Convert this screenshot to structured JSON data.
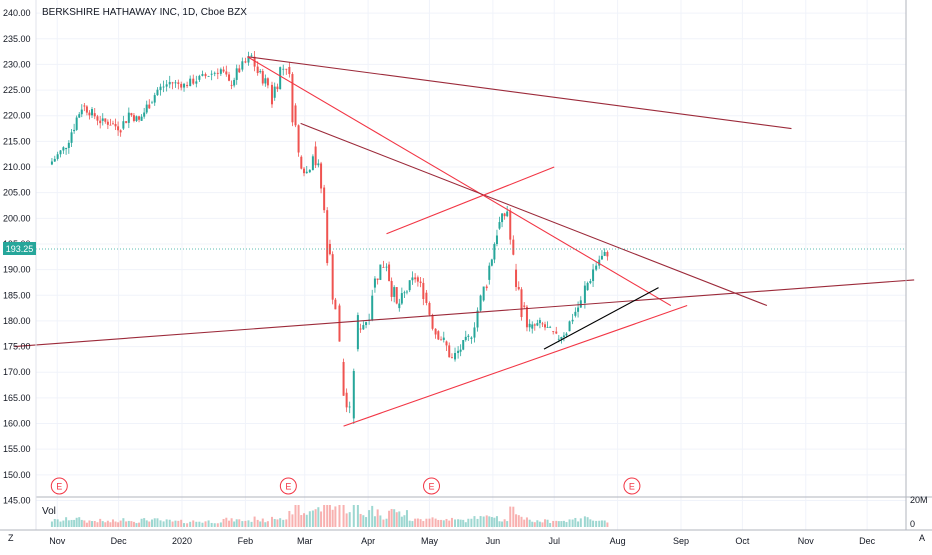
{
  "header": {
    "title": "BERKSHIRE HATHAWAY INC, 1D, Cboe BZX"
  },
  "price_axis": {
    "ticks": [
      "240.00",
      "235.00",
      "230.00",
      "225.00",
      "220.00",
      "215.00",
      "210.00",
      "205.00",
      "200.00",
      "195.00",
      "190.00",
      "185.00",
      "180.00",
      "175.00",
      "170.00",
      "165.00",
      "160.00",
      "155.00",
      "150.00",
      "145.00"
    ],
    "current_price_label": "193.25",
    "current_price_color": "#26a69a"
  },
  "volume_pane": {
    "label": "Vol",
    "ticks": [
      "20M",
      "0"
    ]
  },
  "time_axis": {
    "labels": [
      "Nov",
      "Dec",
      "2020",
      "Feb",
      "Mar",
      "Apr",
      "May",
      "Jun",
      "Jul",
      "Aug",
      "Sep",
      "Oct",
      "Nov",
      "Dec"
    ]
  },
  "earnings_markers": {
    "symbol": "E",
    "color": "#f23645"
  },
  "corner_buttons": {
    "zoom": "Z",
    "auto": "A"
  },
  "colors": {
    "up": "#26a69a",
    "down": "#ef5350",
    "trendline_light": "#f23645",
    "trendline_dark": "#9c2a3a",
    "black_line": "#000000"
  },
  "chart_data": {
    "type": "candlestick",
    "title": "BERKSHIRE HATHAWAY INC, 1D, Cboe BZX",
    "ylim": [
      145,
      241
    ],
    "y_scale": "linear",
    "grid": true,
    "last_price": 193.25,
    "x_ticks": [
      "Nov",
      "Dec",
      "2020",
      "Feb",
      "Mar",
      "Apr",
      "May",
      "Jun",
      "Jul",
      "Aug",
      "Sep",
      "Oct",
      "Nov",
      "Dec"
    ],
    "earnings_dates": [
      "2019-11-02",
      "2020-02-22",
      "2020-05-02",
      "2020-08-08"
    ],
    "series_close": [
      [
        "2019-10-28",
        210.5
      ],
      [
        "2019-11-04",
        213.5
      ],
      [
        "2019-11-08",
        217.0
      ],
      [
        "2019-11-13",
        222.0
      ],
      [
        "2019-11-18",
        220.5
      ],
      [
        "2019-11-22",
        219.0
      ],
      [
        "2019-11-27",
        218.5
      ],
      [
        "2019-12-02",
        217.5
      ],
      [
        "2019-12-06",
        220.5
      ],
      [
        "2019-12-11",
        219.0
      ],
      [
        "2019-12-16",
        222.5
      ],
      [
        "2019-12-20",
        225.0
      ],
      [
        "2019-12-26",
        226.5
      ],
      [
        "2020-01-02",
        226.0
      ],
      [
        "2020-01-08",
        227.0
      ],
      [
        "2020-01-14",
        228.0
      ],
      [
        "2020-01-20",
        229.0
      ],
      [
        "2020-01-24",
        226.0
      ],
      [
        "2020-01-29",
        229.0
      ],
      [
        "2020-02-04",
        231.5
      ],
      [
        "2020-02-07",
        228.5
      ],
      [
        "2020-02-12",
        226.0
      ],
      [
        "2020-02-14",
        223.5
      ],
      [
        "2020-02-18",
        229.0
      ],
      [
        "2020-02-21",
        229.5
      ],
      [
        "2020-02-24",
        222.0
      ],
      [
        "2020-02-27",
        212.0
      ],
      [
        "2020-03-02",
        209.0
      ],
      [
        "2020-03-05",
        214.0
      ],
      [
        "2020-03-09",
        206.0
      ],
      [
        "2020-03-12",
        195.0
      ],
      [
        "2020-03-16",
        183.0
      ],
      [
        "2020-03-18",
        172.0
      ],
      [
        "2020-03-20",
        166.0
      ],
      [
        "2020-03-23",
        161.0
      ],
      [
        "2020-03-25",
        174.5
      ],
      [
        "2020-03-27",
        178.5
      ],
      [
        "2020-03-31",
        180.0
      ],
      [
        "2020-04-03",
        186.5
      ],
      [
        "2020-04-07",
        190.5
      ],
      [
        "2020-04-10",
        191.0
      ],
      [
        "2020-04-15",
        182.5
      ],
      [
        "2020-04-20",
        186.0
      ],
      [
        "2020-04-24",
        188.5
      ],
      [
        "2020-04-28",
        185.5
      ],
      [
        "2020-05-04",
        178.0
      ],
      [
        "2020-05-08",
        176.0
      ],
      [
        "2020-05-12",
        172.5
      ],
      [
        "2020-05-15",
        174.0
      ],
      [
        "2020-05-20",
        176.5
      ],
      [
        "2020-05-26",
        184.0
      ],
      [
        "2020-05-29",
        188.0
      ],
      [
        "2020-06-03",
        198.0
      ],
      [
        "2020-06-08",
        201.5
      ],
      [
        "2020-06-11",
        190.0
      ],
      [
        "2020-06-15",
        183.0
      ],
      [
        "2020-06-19",
        178.5
      ],
      [
        "2020-06-24",
        179.5
      ],
      [
        "2020-06-29",
        178.0
      ],
      [
        "2020-07-02",
        176.5
      ],
      [
        "2020-07-07",
        178.0
      ],
      [
        "2020-07-10",
        181.0
      ],
      [
        "2020-07-14",
        183.5
      ],
      [
        "2020-07-16",
        186.0
      ],
      [
        "2020-07-20",
        190.0
      ],
      [
        "2020-07-23",
        192.0
      ],
      [
        "2020-07-27",
        193.25
      ]
    ],
    "trendlines": [
      {
        "from": [
          "2020-02-02",
          231.5
        ],
        "to": [
          "2020-10-25",
          217.5
        ],
        "color": "dark"
      },
      {
        "from": [
          "2020-02-02",
          231.5
        ],
        "to": [
          "2020-08-27",
          183.0
        ],
        "color": "light"
      },
      {
        "from": [
          "2020-02-28",
          218.5
        ],
        "to": [
          "2020-10-13",
          183.0
        ],
        "color": "dark"
      },
      {
        "from": [
          "2020-04-10",
          197.0
        ],
        "to": [
          "2020-07-01",
          210.0
        ],
        "color": "light"
      },
      {
        "from": [
          "2020-03-20",
          159.5
        ],
        "to": [
          "2020-09-04",
          183.0
        ],
        "color": "light"
      },
      {
        "from": [
          "2019-10-11",
          175.0
        ],
        "to": [
          "2020-12-24",
          188.0
        ],
        "color": "dark"
      },
      {
        "from": [
          "2020-06-26",
          174.5
        ],
        "to": [
          "2020-08-21",
          186.5
        ],
        "color": "black"
      }
    ]
  }
}
